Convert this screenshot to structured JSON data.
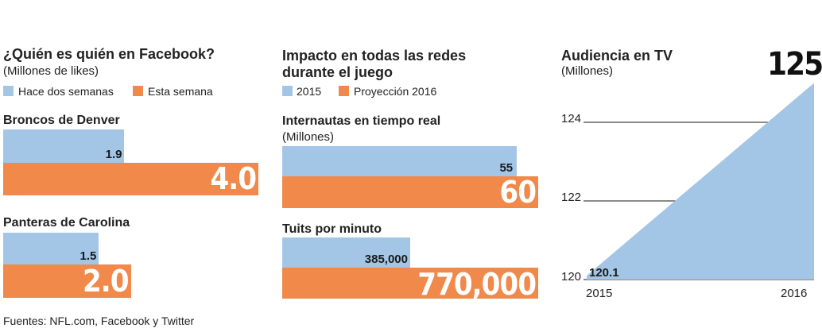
{
  "facebook": {
    "title": "¿Quién es quién en Facebook?",
    "subtitle": "(Millones de likes)",
    "legend": [
      "Hace dos semanas",
      "Esta semana"
    ],
    "teams": [
      {
        "name": "Broncos de Denver",
        "before_label": "1.9",
        "now_label": "4.0"
      },
      {
        "name": "Panteras de Carolina",
        "before_label": "1.5",
        "now_label": "2.0"
      }
    ]
  },
  "impacto": {
    "title_line1": "Impacto en todas las redes",
    "title_line2": "durante el juego",
    "legend": [
      "2015",
      "Proyección 2016"
    ],
    "metrics": [
      {
        "name": "Internautas en tiempo real",
        "unit": "(Millones)",
        "v2015_label": "55",
        "v2016_label": "60"
      },
      {
        "name": "Tuits por minuto",
        "unit": "",
        "v2015_label": "385,000",
        "v2016_label": "770,000"
      }
    ]
  },
  "tv": {
    "title": "Audiencia en TV",
    "subtitle": "(Millones)",
    "start_label": "120.1",
    "end_label": "125",
    "ticks": [
      "124",
      "122",
      "120"
    ],
    "years": [
      "2015",
      "2016"
    ]
  },
  "footer": "Fuentes: NFL.com, Facebook y Twitter",
  "colors": {
    "blue": "#a4c6e6",
    "orange": "#f0894a"
  },
  "chart_data": [
    {
      "type": "bar",
      "title": "¿Quién es quién en Facebook?",
      "ylabel": "(Millones de likes)",
      "categories": [
        "Broncos de Denver",
        "Panteras de Carolina"
      ],
      "series": [
        {
          "name": "Hace dos semanas",
          "values": [
            1.9,
            1.5
          ]
        },
        {
          "name": "Esta semana",
          "values": [
            4.0,
            2.0
          ]
        }
      ],
      "xlim": [
        0,
        4.3
      ]
    },
    {
      "type": "bar",
      "title": "Internautas en tiempo real",
      "ylabel": "(Millones)",
      "categories": [
        "Internautas en tiempo real"
      ],
      "series": [
        {
          "name": "2015",
          "values": [
            55
          ]
        },
        {
          "name": "Proyección 2016",
          "values": [
            60
          ]
        }
      ],
      "xlim": [
        0,
        60
      ]
    },
    {
      "type": "bar",
      "title": "Tuits por minuto",
      "categories": [
        "Tuits por minuto"
      ],
      "series": [
        {
          "name": "2015",
          "values": [
            385000
          ]
        },
        {
          "name": "Proyección 2016",
          "values": [
            770000
          ]
        }
      ],
      "xlim": [
        0,
        770000
      ]
    },
    {
      "type": "area",
      "title": "Audiencia en TV",
      "ylabel": "(Millones)",
      "x": [
        "2015",
        "2016"
      ],
      "values": [
        120.1,
        125
      ],
      "ylim": [
        120,
        125
      ],
      "yticks": [
        120,
        122,
        124
      ]
    }
  ]
}
